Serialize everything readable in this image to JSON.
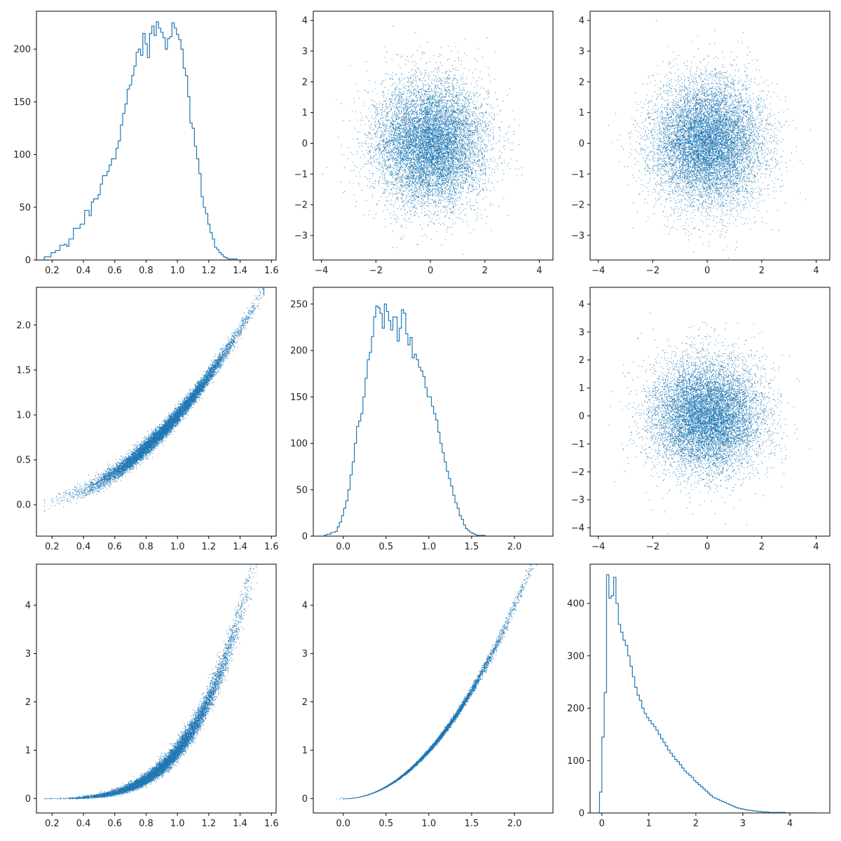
{
  "chart_data": [
    {
      "type": "histogram",
      "row": 0,
      "col": 0,
      "xlim": [
        0.1,
        1.63
      ],
      "ylim": [
        0,
        236
      ],
      "xticks": [
        0.2,
        0.4,
        0.6,
        0.8,
        1.0,
        1.2,
        1.4,
        1.6
      ],
      "yticks": [
        0,
        50,
        100,
        150,
        200
      ],
      "x_start": 0.15,
      "bin_width": 0.0143,
      "counts": [
        3,
        3,
        3,
        7,
        7,
        9,
        9,
        14,
        14,
        15,
        13,
        20,
        20,
        30,
        30,
        30,
        34,
        34,
        47,
        47,
        42,
        55,
        58,
        58,
        62,
        72,
        80,
        80,
        84,
        90,
        96,
        96,
        106,
        113,
        128,
        139,
        148,
        162,
        166,
        175,
        184,
        197,
        200,
        194,
        215,
        205,
        192,
        215,
        222,
        213,
        226,
        220,
        216,
        211,
        200,
        210,
        212,
        225,
        220,
        214,
        209,
        200,
        182,
        175,
        155,
        130,
        125,
        108,
        96,
        82,
        60,
        50,
        44,
        34,
        26,
        20,
        12,
        10,
        7,
        5,
        3,
        2,
        1,
        1,
        1,
        1
      ]
    },
    {
      "type": "scatter",
      "row": 0,
      "col": 1,
      "xlim": [
        -4.3,
        4.5
      ],
      "ylim": [
        -3.8,
        4.3
      ],
      "xticks": [
        -4,
        -2,
        0,
        2,
        4
      ],
      "yticks": [
        -3,
        -2,
        -1,
        0,
        1,
        2,
        3,
        4
      ],
      "distribution": "standard-normal-2d",
      "n_points": 10000,
      "seed": 11
    },
    {
      "type": "scatter",
      "row": 0,
      "col": 2,
      "xlim": [
        -4.3,
        4.5
      ],
      "ylim": [
        -3.8,
        4.3
      ],
      "xticks": [
        -4,
        -2,
        0,
        2,
        4
      ],
      "yticks": [
        -3,
        -2,
        -1,
        0,
        1,
        2,
        3,
        4
      ],
      "distribution": "standard-normal-2d",
      "n_points": 10000,
      "seed": 23
    },
    {
      "type": "scatter",
      "row": 1,
      "col": 0,
      "xlim": [
        0.1,
        1.63
      ],
      "ylim": [
        -0.35,
        2.42
      ],
      "xticks": [
        0.2,
        0.4,
        0.6,
        0.8,
        1.0,
        1.2,
        1.4,
        1.6
      ],
      "yticks": [
        0.0,
        0.5,
        1.0,
        1.5,
        2.0
      ],
      "relation": "y = x^2 + noise",
      "n_points": 10000,
      "seed": 37
    },
    {
      "type": "histogram",
      "row": 1,
      "col": 1,
      "xlim": [
        -0.35,
        2.45
      ],
      "ylim": [
        0,
        268
      ],
      "xticks": [
        0.0,
        0.5,
        1.0,
        1.5,
        2.0
      ],
      "yticks": [
        0,
        50,
        100,
        150,
        200,
        250
      ],
      "x_start": -0.22,
      "bin_width": 0.025,
      "counts": [
        1,
        2,
        2,
        4,
        4,
        5,
        10,
        15,
        22,
        30,
        38,
        50,
        66,
        80,
        100,
        118,
        124,
        132,
        150,
        170,
        190,
        198,
        215,
        236,
        248,
        246,
        240,
        224,
        250,
        242,
        232,
        222,
        236,
        236,
        210,
        224,
        244,
        240,
        218,
        206,
        214,
        192,
        196,
        190,
        182,
        178,
        172,
        160,
        150,
        150,
        140,
        132,
        125,
        112,
        100,
        90,
        80,
        70,
        62,
        54,
        44,
        36,
        30,
        22,
        18,
        12,
        8,
        6,
        4,
        3,
        2,
        1,
        1,
        1,
        1
      ]
    },
    {
      "type": "scatter",
      "row": 1,
      "col": 2,
      "xlim": [
        -4.3,
        4.5
      ],
      "ylim": [
        -4.3,
        4.6
      ],
      "xticks": [
        -4,
        -2,
        0,
        2,
        4
      ],
      "yticks": [
        -4,
        -3,
        -2,
        -1,
        0,
        1,
        2,
        3,
        4
      ],
      "distribution": "standard-normal-2d",
      "n_points": 10000,
      "seed": 41
    },
    {
      "type": "scatter",
      "row": 2,
      "col": 0,
      "xlim": [
        0.1,
        1.63
      ],
      "ylim": [
        -0.3,
        4.85
      ],
      "xticks": [
        0.2,
        0.4,
        0.6,
        0.8,
        1.0,
        1.2,
        1.4,
        1.6
      ],
      "yticks": [
        0,
        1,
        2,
        3,
        4
      ],
      "relation": "y = x^4 + noise",
      "n_points": 10000,
      "seed": 53
    },
    {
      "type": "scatter",
      "row": 2,
      "col": 1,
      "xlim": [
        -0.35,
        2.45
      ],
      "ylim": [
        -0.3,
        4.85
      ],
      "xticks": [
        0.0,
        0.5,
        1.0,
        1.5,
        2.0
      ],
      "yticks": [
        0,
        1,
        2,
        3,
        4
      ],
      "relation": "y = x^2 + noise",
      "n_points": 10000,
      "seed": 67
    },
    {
      "type": "histogram",
      "row": 2,
      "col": 2,
      "xlim": [
        -0.25,
        4.85
      ],
      "ylim": [
        0,
        475
      ],
      "xticks": [
        0,
        1,
        2,
        3,
        4
      ],
      "yticks": [
        0,
        100,
        200,
        300,
        400
      ],
      "x_start": -0.05,
      "bin_width": 0.05,
      "counts": [
        40,
        145,
        230,
        455,
        410,
        415,
        450,
        400,
        360,
        345,
        330,
        320,
        300,
        280,
        260,
        240,
        225,
        215,
        200,
        190,
        182,
        176,
        170,
        165,
        158,
        150,
        142,
        135,
        128,
        120,
        114,
        108,
        102,
        98,
        92,
        86,
        80,
        76,
        72,
        68,
        62,
        58,
        54,
        50,
        46,
        42,
        38,
        34,
        30,
        28,
        26,
        24,
        22,
        20,
        18,
        16,
        14,
        12,
        10,
        9,
        8,
        7,
        6,
        5,
        5,
        4,
        4,
        3,
        3,
        2,
        2,
        2,
        1,
        1,
        1,
        1,
        1,
        1,
        1,
        0,
        0,
        0,
        0,
        0,
        0,
        0,
        0,
        0,
        0,
        0,
        0,
        0,
        0
      ]
    }
  ],
  "colors": {
    "series": "#1f77b4",
    "axis": "#000000",
    "text": "#222222",
    "background": "#ffffff"
  }
}
